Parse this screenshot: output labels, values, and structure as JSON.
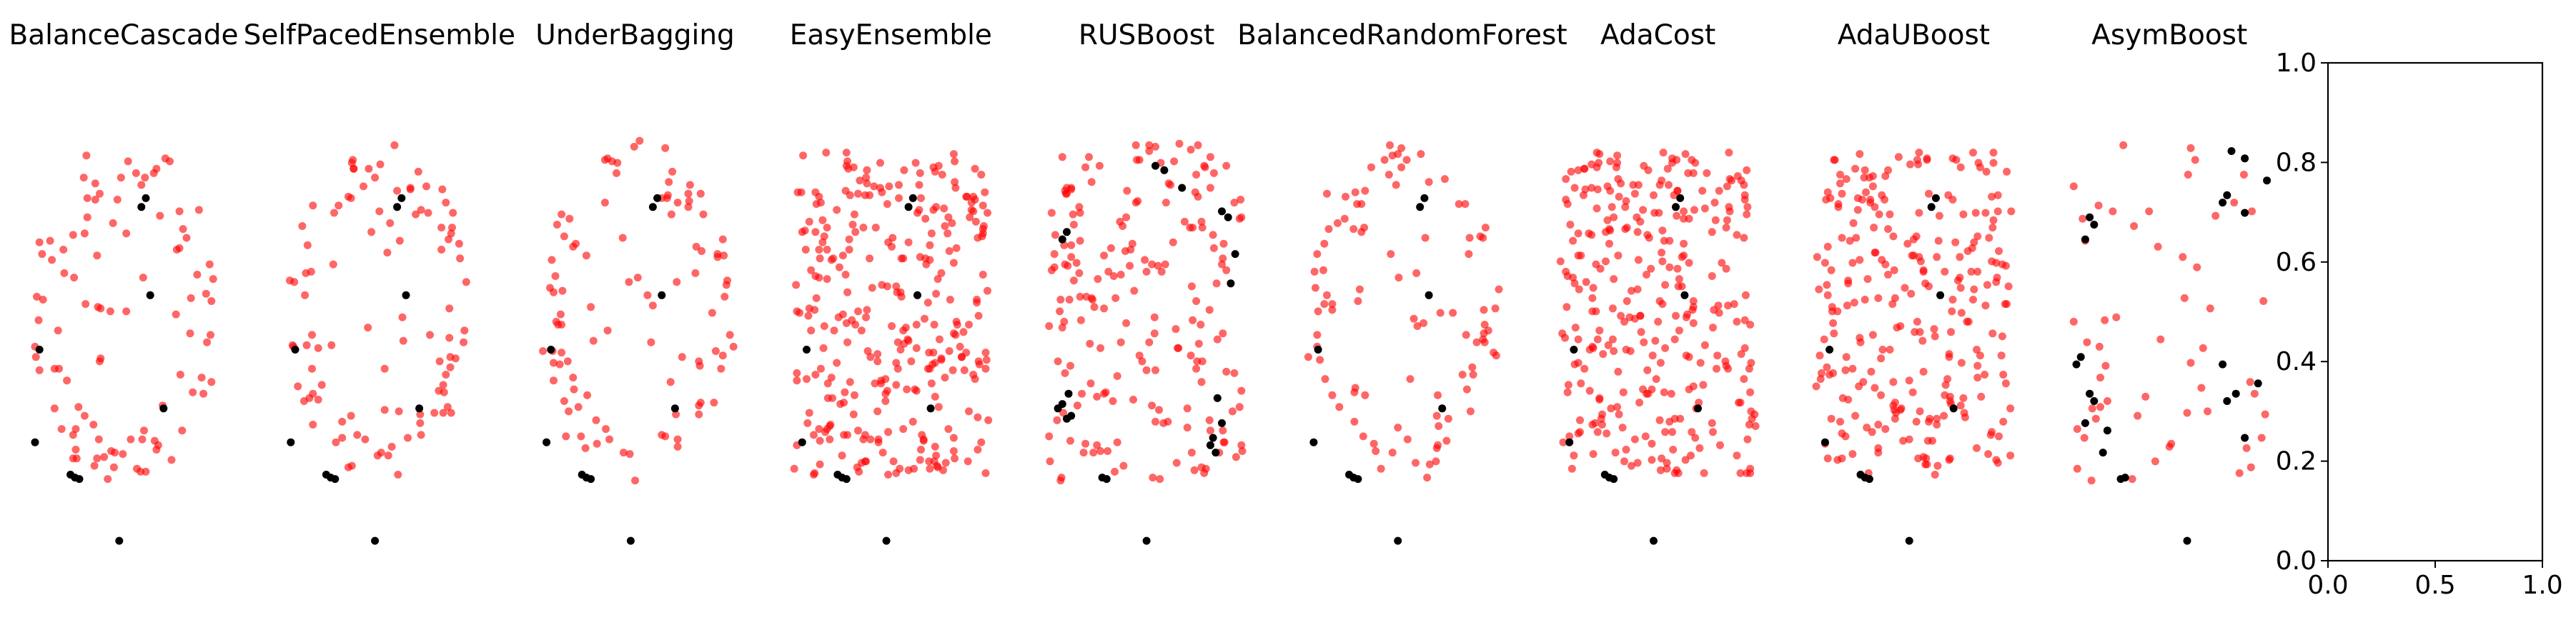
{
  "chart_data": [
    {
      "type": "scatter",
      "title": "BalanceCascade",
      "series": [
        {
          "color": "#ff0000",
          "opacity": 0.6,
          "x": [],
          "y": []
        },
        {
          "color": "#000000",
          "opacity": 1.0,
          "x": [],
          "y": []
        }
      ]
    },
    {
      "type": "scatter",
      "title": "SelfPacedEnsemble",
      "series": [
        {
          "color": "#ff0000",
          "opacity": 0.6,
          "x": [],
          "y": []
        },
        {
          "color": "#000000",
          "opacity": 1.0,
          "x": [],
          "y": []
        }
      ]
    },
    {
      "type": "scatter",
      "title": "UnderBagging",
      "series": [
        {
          "color": "#ff0000",
          "opacity": 0.6,
          "x": [],
          "y": []
        },
        {
          "color": "#000000",
          "opacity": 1.0,
          "x": [],
          "y": []
        }
      ]
    },
    {
      "type": "scatter",
      "title": "EasyEnsemble",
      "series": [
        {
          "color": "#ff0000",
          "opacity": 0.6,
          "x": [],
          "y": []
        },
        {
          "color": "#000000",
          "opacity": 1.0,
          "x": [],
          "y": []
        }
      ]
    },
    {
      "type": "scatter",
      "title": "RUSBoost",
      "series": [
        {
          "color": "#ff0000",
          "opacity": 0.6,
          "x": [],
          "y": []
        },
        {
          "color": "#000000",
          "opacity": 1.0,
          "x": [],
          "y": []
        }
      ]
    },
    {
      "type": "scatter",
      "title": "BalancedRandomForest",
      "series": [
        {
          "color": "#ff0000",
          "opacity": 0.6,
          "x": [],
          "y": []
        },
        {
          "color": "#000000",
          "opacity": 1.0,
          "x": [],
          "y": []
        }
      ]
    },
    {
      "type": "scatter",
      "title": "AdaCost",
      "series": [
        {
          "color": "#ff0000",
          "opacity": 0.6,
          "x": [],
          "y": []
        },
        {
          "color": "#000000",
          "opacity": 1.0,
          "x": [],
          "y": []
        }
      ]
    },
    {
      "type": "scatter",
      "title": "AdaUBoost",
      "series": [
        {
          "color": "#ff0000",
          "opacity": 0.6,
          "x": [],
          "y": []
        },
        {
          "color": "#000000",
          "opacity": 1.0,
          "x": [],
          "y": []
        }
      ]
    },
    {
      "type": "scatter",
      "title": "AsymBoost",
      "series": [
        {
          "color": "#ff0000",
          "opacity": 0.6,
          "x": [],
          "y": []
        },
        {
          "color": "#000000",
          "opacity": 1.0,
          "x": [],
          "y": []
        }
      ]
    },
    {
      "type": "empty",
      "title": "",
      "xlim": [
        0,
        1
      ],
      "ylim": [
        0,
        1
      ],
      "xticks": [
        "0.0",
        "0.5",
        "1.0"
      ],
      "yticks": [
        "0.0",
        "0.2",
        "0.4",
        "0.6",
        "0.8",
        "1.0"
      ]
    }
  ]
}
